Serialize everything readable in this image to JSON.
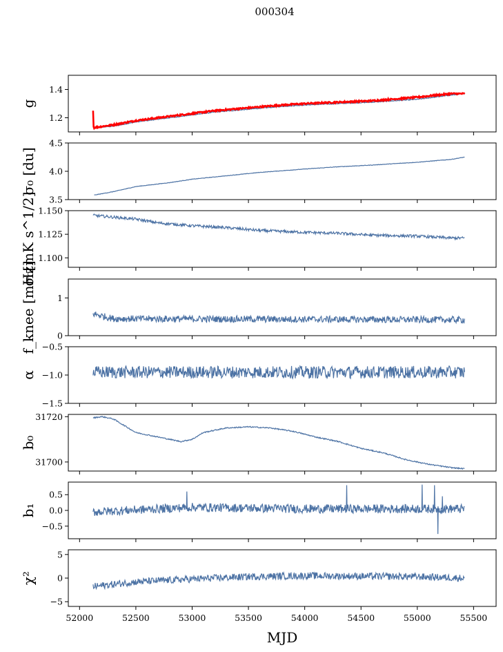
{
  "chart_data": {
    "type": "line",
    "title": "000304",
    "xlabel": "MJD",
    "xlim": [
      51900,
      55700
    ],
    "xticks": [
      52000,
      52500,
      53000,
      53500,
      54000,
      54500,
      55000,
      55500
    ],
    "x_range": [
      52120,
      55420
    ],
    "colors": {
      "main": "#4c72a4",
      "overlay": "#ff0000"
    },
    "panels": [
      {
        "id": "g",
        "ylabel": "g",
        "ylim": [
          1.1,
          1.5
        ],
        "yticks": [
          1.2,
          1.4
        ],
        "ytick_labels": [
          "1.2",
          "1.4"
        ],
        "series": [
          {
            "color": "main",
            "points": [
              [
                52120,
                1.13
              ],
              [
                52300,
                1.14
              ],
              [
                52500,
                1.17
              ],
              [
                52700,
                1.19
              ],
              [
                53000,
                1.22
              ],
              [
                53200,
                1.24
              ],
              [
                53500,
                1.26
              ],
              [
                53800,
                1.28
              ],
              [
                54000,
                1.29
              ],
              [
                54300,
                1.3
              ],
              [
                54600,
                1.31
              ],
              [
                55000,
                1.33
              ],
              [
                55300,
                1.36
              ],
              [
                55420,
                1.37
              ]
            ],
            "noise": 0.003
          },
          {
            "color": "overlay",
            "points": [
              [
                52120,
                1.25
              ],
              [
                52125,
                1.13
              ],
              [
                52300,
                1.15
              ],
              [
                52500,
                1.18
              ],
              [
                52700,
                1.2
              ],
              [
                53000,
                1.23
              ],
              [
                53200,
                1.25
              ],
              [
                53500,
                1.27
              ],
              [
                53800,
                1.29
              ],
              [
                54000,
                1.3
              ],
              [
                54300,
                1.31
              ],
              [
                54600,
                1.32
              ],
              [
                55000,
                1.345
              ],
              [
                55300,
                1.37
              ],
              [
                55420,
                1.37
              ]
            ],
            "noise": 0.005
          }
        ]
      },
      {
        "id": "sigma0-du",
        "ylabel": "σ₀ [du]",
        "ylim": [
          3.5,
          4.5
        ],
        "yticks": [
          3.5,
          4.0,
          4.5
        ],
        "ytick_labels": [
          "3.5",
          "4.0",
          "4.5"
        ],
        "series": [
          {
            "color": "main",
            "points": [
              [
                52130,
                3.58
              ],
              [
                52300,
                3.64
              ],
              [
                52500,
                3.73
              ],
              [
                52800,
                3.8
              ],
              [
                53000,
                3.86
              ],
              [
                53300,
                3.92
              ],
              [
                53600,
                3.98
              ],
              [
                54000,
                4.04
              ],
              [
                54300,
                4.08
              ],
              [
                54600,
                4.11
              ],
              [
                55000,
                4.16
              ],
              [
                55300,
                4.21
              ],
              [
                55420,
                4.25
              ]
            ],
            "noise": 0.004
          }
        ]
      },
      {
        "id": "sigma0-mk",
        "ylabel": "σ₀[mK s^1/2]",
        "ylim": [
          1.09,
          1.15
        ],
        "yticks": [
          1.1,
          1.125,
          1.15
        ],
        "ytick_labels": [
          "1.100",
          "1.125",
          "1.150"
        ],
        "series": [
          {
            "color": "main",
            "points": [
              [
                52120,
                1.145
              ],
              [
                52500,
                1.141
              ],
              [
                52700,
                1.137
              ],
              [
                53000,
                1.134
              ],
              [
                53300,
                1.132
              ],
              [
                53600,
                1.129
              ],
              [
                54000,
                1.127
              ],
              [
                54300,
                1.126
              ],
              [
                54600,
                1.124
              ],
              [
                55000,
                1.123
              ],
              [
                55300,
                1.121
              ],
              [
                55420,
                1.121
              ]
            ],
            "noise": 0.0015
          }
        ]
      },
      {
        "id": "fknee",
        "ylabel": "f_knee [mHz]",
        "ylim": [
          0,
          1.5
        ],
        "yticks": [
          0,
          1
        ],
        "ytick_labels": [
          "0",
          "1"
        ],
        "series": [
          {
            "color": "main",
            "points": [
              [
                52120,
                0.58
              ],
              [
                52300,
                0.45
              ],
              [
                55420,
                0.42
              ]
            ],
            "noise": 0.09
          }
        ]
      },
      {
        "id": "alpha",
        "ylabel": "α",
        "ylim": [
          -1.5,
          -0.5
        ],
        "yticks": [
          -1.5,
          -1.0,
          -0.5
        ],
        "ytick_labels": [
          "−1.5",
          "−1.0",
          "−0.5"
        ],
        "series": [
          {
            "color": "main",
            "points": [
              [
                52120,
                -0.95
              ],
              [
                55420,
                -0.95
              ]
            ],
            "noise": 0.11
          }
        ]
      },
      {
        "id": "b0",
        "ylabel": "b₀",
        "ylim": [
          31696,
          31721
        ],
        "yticks": [
          31700,
          31720
        ],
        "ytick_labels": [
          "31700",
          "31720"
        ],
        "series": [
          {
            "color": "main",
            "points": [
              [
                52120,
                31719.5
              ],
              [
                52200,
                31720
              ],
              [
                52300,
                31719
              ],
              [
                52400,
                31716
              ],
              [
                52500,
                31713
              ],
              [
                52700,
                31711
              ],
              [
                52900,
                31709
              ],
              [
                53000,
                31710
              ],
              [
                53100,
                31713
              ],
              [
                53300,
                31715
              ],
              [
                53500,
                31715.5
              ],
              [
                53700,
                31715
              ],
              [
                53900,
                31713.5
              ],
              [
                54100,
                31711
              ],
              [
                54300,
                31709
              ],
              [
                54500,
                31706
              ],
              [
                54700,
                31704
              ],
              [
                54900,
                31701
              ],
              [
                55100,
                31699
              ],
              [
                55300,
                31697.5
              ],
              [
                55420,
                31697
              ]
            ],
            "noise": 0.25
          }
        ]
      },
      {
        "id": "b1",
        "ylabel": "b₁",
        "ylim": [
          -0.9,
          0.9
        ],
        "yticks": [
          -0.5,
          0.0,
          0.5
        ],
        "ytick_labels": [
          "−0.5",
          "0.0",
          "0.5"
        ],
        "series": [
          {
            "color": "main",
            "points": [
              [
                52120,
                -0.05
              ],
              [
                53000,
                0.1
              ],
              [
                54000,
                0.05
              ],
              [
                55420,
                0.05
              ]
            ],
            "noise": 0.14,
            "spikes": [
              [
                52950,
                0.6
              ],
              [
                54370,
                0.8
              ],
              [
                55040,
                0.82
              ],
              [
                55150,
                0.8
              ],
              [
                55180,
                -0.75
              ],
              [
                55220,
                0.45
              ]
            ]
          }
        ]
      },
      {
        "id": "chi2",
        "ylabel": "χ²",
        "ylim": [
          -6,
          6
        ],
        "yticks": [
          -5,
          0,
          5
        ],
        "ytick_labels": [
          "−5",
          "0",
          "5"
        ],
        "series": [
          {
            "color": "main",
            "points": [
              [
                52120,
                -1.8
              ],
              [
                52500,
                -0.8
              ],
              [
                53000,
                -0.2
              ],
              [
                53500,
                0.3
              ],
              [
                54000,
                0.5
              ],
              [
                54500,
                0.4
              ],
              [
                55000,
                0.3
              ],
              [
                55420,
                0.0
              ]
            ],
            "noise": 0.75
          }
        ]
      }
    ]
  }
}
